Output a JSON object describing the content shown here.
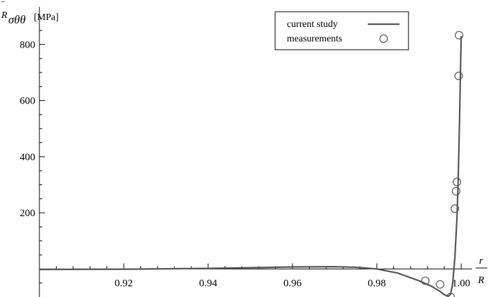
{
  "chart_data": {
    "type": "line",
    "ylabel": {
      "main": "R",
      "bar": "‾",
      "sub": "σθθ",
      "unit": "[MPa]"
    },
    "xlabel": {
      "numerator": "r",
      "denominator": "R"
    },
    "xlim": [
      0.9,
      1.0003
    ],
    "ylim": [
      -100,
      860
    ],
    "x_ticks": [
      0.92,
      0.94,
      0.96,
      0.98,
      1.0
    ],
    "x_tick_labels": [
      "0.92",
      "0.94",
      "0.96",
      "0.98",
      "1.00"
    ],
    "y_ticks": [
      200,
      400,
      600,
      800
    ],
    "y_tick_labels": [
      "200",
      "400",
      "600",
      "800"
    ],
    "legend_position": "top-right",
    "grid": false,
    "series": [
      {
        "name": "current study",
        "kind": "line",
        "color": "#555555",
        "x": [
          0.9,
          0.92,
          0.94,
          0.96,
          0.97,
          0.975,
          0.98,
          0.985,
          0.99,
          0.993,
          0.995,
          0.996,
          0.997,
          0.9975,
          0.998,
          0.9985,
          0.999,
          0.9993,
          0.9996,
          0.9998,
          1.0
        ],
        "y": [
          -2,
          -1,
          2,
          7,
          8,
          6,
          0,
          -15,
          -42,
          -62,
          -80,
          -92,
          -97,
          -90,
          -50,
          40,
          180,
          320,
          520,
          680,
          830
        ]
      },
      {
        "name": "measurements",
        "kind": "scatter",
        "color": "#555555",
        "x": [
          0.9915,
          0.995,
          0.9975,
          0.9985,
          0.9988,
          0.999,
          0.9994,
          0.9995
        ],
        "y": [
          -42,
          -55,
          -100,
          215,
          277,
          310,
          688,
          833
        ]
      }
    ]
  }
}
